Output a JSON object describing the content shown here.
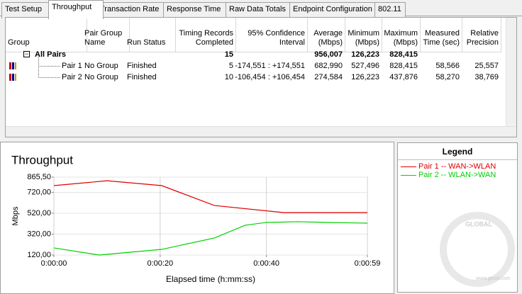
{
  "tabs": [
    "Test Setup",
    "Throughput",
    "Transaction Rate",
    "Response Time",
    "Raw Data Totals",
    "Endpoint Configuration",
    "802.11"
  ],
  "table": {
    "columns": [
      "Group",
      "Pair Group Name",
      "Run Status",
      "Timing Records Completed",
      "95% Confidence Interval",
      "Average (Mbps)",
      "Minimum (Mbps)",
      "Maximum (Mbps)",
      "Measured Time (sec)",
      "Relative Precision"
    ],
    "rows": [
      [
        "All Pairs",
        null,
        null,
        "15",
        null,
        "956,007",
        "126,223",
        "828,415",
        null,
        null
      ],
      [
        "Pair 1",
        "No Group",
        "Finished",
        "5",
        "-174,551 : +174,551",
        "682,990",
        "527,496",
        "828,415",
        "58,566",
        "25,557"
      ],
      [
        "Pair 2",
        "No Group",
        "Finished",
        "10",
        "-106,454 : +106,454",
        "274,584",
        "126,223",
        "437,876",
        "58,270",
        "38,769"
      ]
    ]
  },
  "chart_data": {
    "type": "line",
    "title": "Throughput",
    "y_label": "Mbps",
    "x_label": "Elapsed time (h:mm:ss)",
    "xlim": [
      0,
      59
    ],
    "xticks": [
      {
        "value": 0,
        "label": "0:00:00"
      },
      {
        "value": 20,
        "label": "0:00:20"
      },
      {
        "value": 40,
        "label": "0:00:40"
      },
      {
        "value": 59,
        "label": "0:00:59"
      }
    ],
    "ylim": [
      120,
      865.5
    ],
    "yticks": [
      {
        "value": 865.5,
        "label": "865,50"
      },
      {
        "value": 720,
        "label": "720,00"
      },
      {
        "value": 520,
        "label": "520,00"
      },
      {
        "value": 320,
        "label": "320,00"
      },
      {
        "value": 120,
        "label": "120,00"
      }
    ],
    "grid": true,
    "series": [
      {
        "name": "Pair 1 -- WAN->WLAN",
        "color": "#e00000",
        "x": [
          0,
          10,
          20.3,
          30.2,
          43.3,
          59
        ],
        "values": [
          784,
          831,
          784,
          594,
          526,
          526
        ]
      },
      {
        "name": "Pair 2 -- WLAN->WAN",
        "color": "#00d000",
        "x": [
          0,
          8.5,
          20.3,
          30.2,
          36,
          40,
          46,
          51.3,
          59
        ],
        "values": [
          188,
          120,
          174,
          283,
          405,
          432,
          439,
          432,
          425
        ]
      }
    ]
  },
  "legend_title": "Legend",
  "watermark": {
    "brand": "GLOBAL",
    "url": "www.gecid.com"
  }
}
